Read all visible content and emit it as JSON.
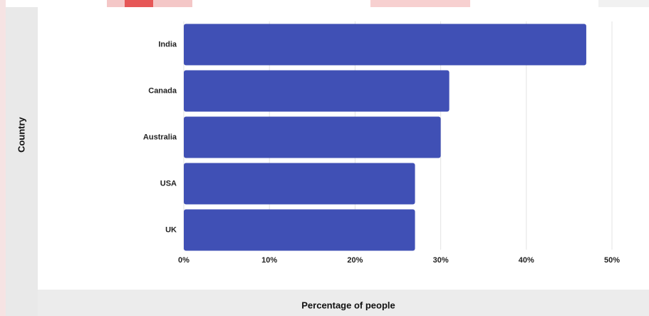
{
  "chart_data": {
    "type": "bar",
    "orientation": "horizontal",
    "categories": [
      "India",
      "Canada",
      "Australia",
      "USA",
      "UK"
    ],
    "values": [
      47,
      31,
      30,
      27,
      27
    ],
    "xlim": [
      0,
      50
    ],
    "x_ticks": [
      "0%",
      "10%",
      "20%",
      "30%",
      "40%",
      "50%"
    ],
    "xlabel": "Percentage of people",
    "ylabel": "Country",
    "grid": "vertical",
    "bar_color": "#4050b5"
  }
}
